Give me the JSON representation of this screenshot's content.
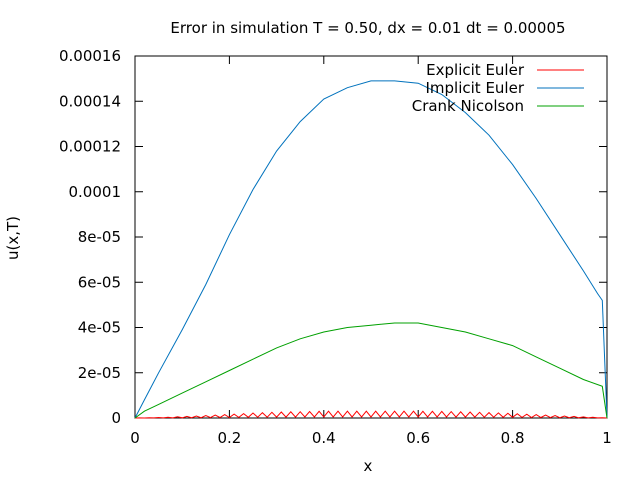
{
  "chart_data": {
    "type": "line",
    "title": "Error in simulation T = 0.50, dx = 0.01 dt = 0.00005",
    "xlabel": "x",
    "ylabel": "u(x,T)",
    "xlim": [
      0,
      1
    ],
    "ylim": [
      0,
      0.00016
    ],
    "x_ticks": [
      0,
      0.2,
      0.4,
      0.6,
      0.8,
      1
    ],
    "x_tick_labels": [
      "0",
      "0.2",
      "0.4",
      "0.6",
      "0.8",
      "1"
    ],
    "y_ticks": [
      0,
      2e-05,
      4e-05,
      6e-05,
      8e-05,
      0.0001,
      0.00012,
      0.00014,
      0.00016
    ],
    "y_tick_labels": [
      "0",
      "2e-05",
      "4e-05",
      "6e-05",
      "8e-05",
      "0.0001",
      "0.00012",
      "0.00014",
      "0.00016"
    ],
    "grid": false,
    "legend_position": "top-right",
    "series": [
      {
        "name": "Explicit Euler",
        "color": "#ff0000",
        "x": [
          0,
          0.05,
          0.1,
          0.15,
          0.2,
          0.25,
          0.3,
          0.35,
          0.4,
          0.45,
          0.5,
          0.55,
          0.6,
          0.65,
          0.7,
          0.75,
          0.8,
          0.85,
          0.9,
          0.95,
          1.0
        ],
        "y": [
          0,
          2e-07,
          6e-07,
          1.1e-06,
          1.6e-06,
          2.2e-06,
          2.6e-06,
          2.8e-06,
          3e-06,
          3e-06,
          3e-06,
          3e-06,
          3e-06,
          2.9e-06,
          2.7e-06,
          2.4e-06,
          2e-06,
          1.5e-06,
          1e-06,
          5e-07,
          0
        ],
        "oscillation_amplitude": 1.8e-06
      },
      {
        "name": "Implicit Euler",
        "color": "#0072bd",
        "x": [
          0,
          0.02,
          0.05,
          0.1,
          0.15,
          0.2,
          0.25,
          0.3,
          0.35,
          0.4,
          0.45,
          0.5,
          0.55,
          0.6,
          0.65,
          0.7,
          0.75,
          0.8,
          0.85,
          0.9,
          0.95,
          0.98,
          0.99,
          1.0
        ],
        "y": [
          0,
          8e-06,
          2e-05,
          3.9e-05,
          5.9e-05,
          8.1e-05,
          0.000101,
          0.000118,
          0.000131,
          0.000141,
          0.000146,
          0.000149,
          0.000149,
          0.000148,
          0.000143,
          0.000135,
          0.000125,
          0.000112,
          9.7e-05,
          8.1e-05,
          6.5e-05,
          5.5e-05,
          5.2e-05,
          0
        ]
      },
      {
        "name": "Crank Nicolson",
        "color": "#00a000",
        "x": [
          0,
          0.02,
          0.05,
          0.1,
          0.15,
          0.2,
          0.25,
          0.3,
          0.35,
          0.4,
          0.45,
          0.5,
          0.55,
          0.6,
          0.65,
          0.7,
          0.75,
          0.8,
          0.85,
          0.9,
          0.95,
          0.99,
          1.0
        ],
        "y": [
          0,
          3e-06,
          6e-06,
          1.1e-05,
          1.6e-05,
          2.1e-05,
          2.6e-05,
          3.1e-05,
          3.5e-05,
          3.8e-05,
          4e-05,
          4.1e-05,
          4.2e-05,
          4.2e-05,
          4e-05,
          3.8e-05,
          3.5e-05,
          3.2e-05,
          2.7e-05,
          2.2e-05,
          1.7e-05,
          1.4e-05,
          0
        ]
      }
    ]
  }
}
